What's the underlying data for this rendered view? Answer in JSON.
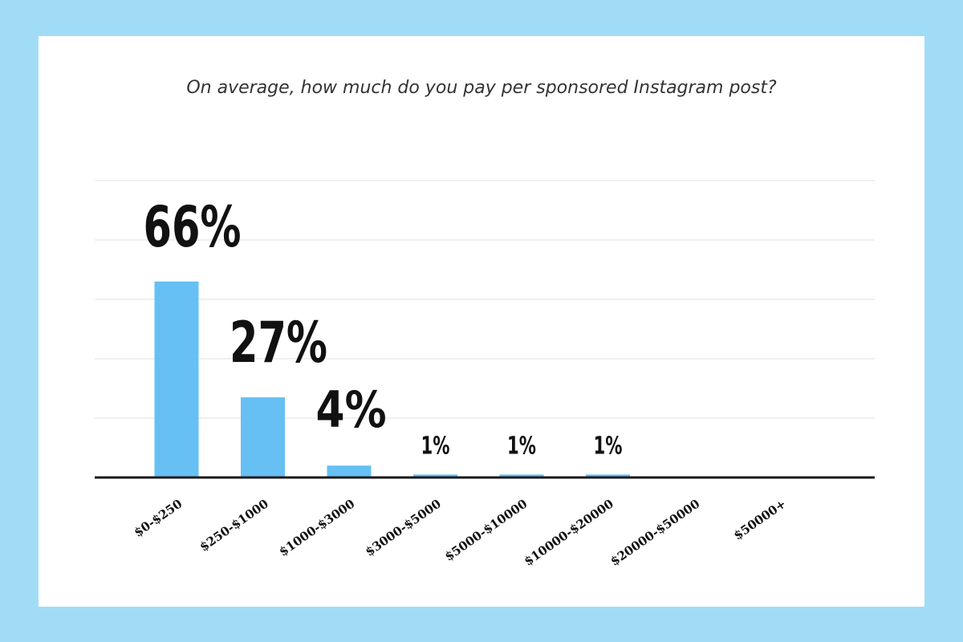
{
  "chart_data": {
    "type": "bar",
    "title": "On average, how much do you pay per sponsored Instagram post?",
    "xlabel": "",
    "ylabel": "",
    "categories": [
      "$0-$250",
      "$250-$1000",
      "$1000-$3000",
      "$3000-$5000",
      "$5000-$10000",
      "$10000-$20000",
      "$20000-$50000",
      "$50000+"
    ],
    "values": [
      66,
      27,
      4,
      1,
      1,
      1,
      0,
      0
    ],
    "data_labels": [
      "66%",
      "27%",
      "4%",
      "1%",
      "1%",
      "1%",
      "",
      ""
    ],
    "ylim": [
      0,
      100
    ],
    "grid": true,
    "legend": "none",
    "bar_color": "#66c0f4",
    "background_color": "#a1dcf7"
  }
}
